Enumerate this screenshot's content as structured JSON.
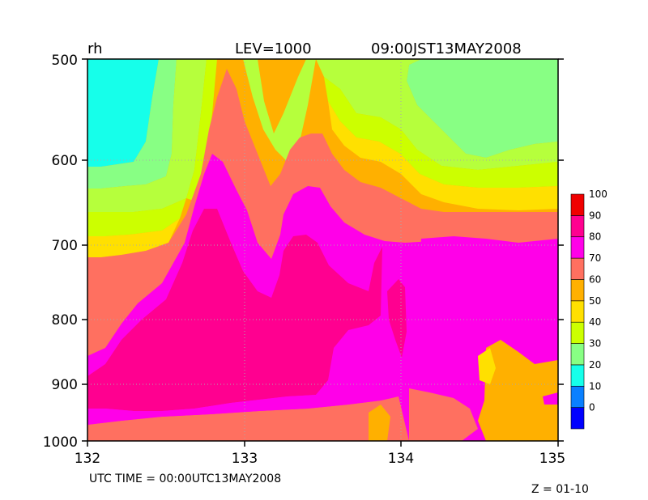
{
  "chart_data": {
    "type": "heatmap",
    "variable_label": "rh",
    "level_label": "LEV=1000",
    "time_label": "09:00JST13MAY2008",
    "footer_time": "UTC TIME = 00:00UTC13MAY2008",
    "footer_z": "Z = 01-10",
    "x_ticks": [
      "132",
      "133",
      "134",
      "135"
    ],
    "y_ticks": [
      "500",
      "600",
      "700",
      "800",
      "900",
      "1000"
    ],
    "xlim": [
      132,
      135
    ],
    "ylim": [
      1000,
      500
    ],
    "y_scale": "log",
    "grid": true,
    "legend_placement": "right",
    "colorbar": {
      "labels": [
        "0",
        "10",
        "20",
        "30",
        "40",
        "50",
        "60",
        "70",
        "80",
        "90",
        "100"
      ],
      "colors": [
        "#0000ff",
        "#0a80ff",
        "#16ffea",
        "#88ff84",
        "#ccff00",
        "#ffe000",
        "#ffb000",
        "#ff7060",
        "#ff00e8",
        "#ff0090",
        "#f00000"
      ]
    },
    "field_colors": [
      "#16ffea",
      "#88ff84",
      "#b6ff3c",
      "#ccff00",
      "#ffe000",
      "#ffb000",
      "#ff7060",
      "#ff00e8",
      "#ff0090"
    ]
  }
}
